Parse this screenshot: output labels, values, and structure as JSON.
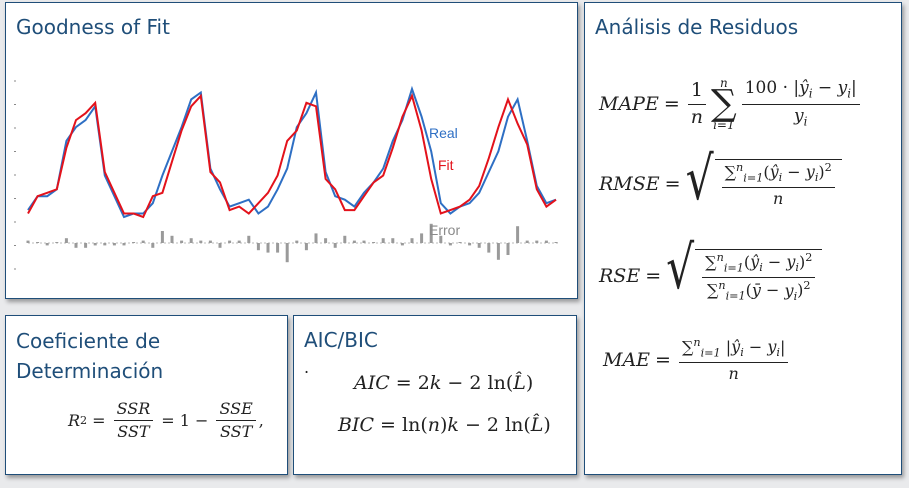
{
  "panels": {
    "goodness": {
      "title": "Goodness of Fit",
      "legend": {
        "real": "Real",
        "fit": "Fit",
        "error": "Error"
      }
    },
    "residuos": {
      "title": "Análisis de Residuos",
      "mape_lhs": "MAPE",
      "rmse_lhs": "RMSE",
      "rse_lhs": "RSE",
      "mae_lhs": "MAE"
    },
    "coef": {
      "title_line1": "Coeficiente de",
      "title_line2": "Determinación"
    },
    "aic": {
      "title": "AIC/BIC",
      "dot": "."
    }
  },
  "colors": {
    "title": "#1f4e79",
    "real": "#2e6fc4",
    "fit": "#e3121b",
    "error": "#9a9a9a",
    "border": "#1f4e79"
  },
  "chart_data": {
    "type": "line",
    "series": [
      {
        "name": "Real",
        "values": [
          0.22,
          0.3,
          0.3,
          0.34,
          0.62,
          0.7,
          0.74,
          0.82,
          0.42,
          0.3,
          0.18,
          0.2,
          0.2,
          0.26,
          0.42,
          0.56,
          0.7,
          0.86,
          0.9,
          0.46,
          0.34,
          0.24,
          0.26,
          0.28,
          0.2,
          0.24,
          0.34,
          0.46,
          0.7,
          0.78,
          0.9,
          0.44,
          0.3,
          0.28,
          0.24,
          0.32,
          0.38,
          0.46,
          0.62,
          0.74,
          0.92,
          0.76,
          0.56,
          0.26,
          0.2,
          0.24,
          0.26,
          0.32,
          0.44,
          0.56,
          0.76,
          0.86,
          0.62,
          0.36,
          0.26,
          0.28
        ]
      },
      {
        "name": "Fit",
        "values": [
          0.2,
          0.3,
          0.32,
          0.34,
          0.58,
          0.74,
          0.78,
          0.84,
          0.44,
          0.32,
          0.2,
          0.2,
          0.18,
          0.3,
          0.32,
          0.5,
          0.68,
          0.82,
          0.88,
          0.44,
          0.38,
          0.22,
          0.24,
          0.2,
          0.26,
          0.32,
          0.42,
          0.62,
          0.68,
          0.84,
          0.82,
          0.4,
          0.34,
          0.22,
          0.22,
          0.3,
          0.38,
          0.42,
          0.58,
          0.76,
          0.88,
          0.68,
          0.4,
          0.2,
          0.22,
          0.24,
          0.28,
          0.36,
          0.52,
          0.7,
          0.86,
          0.72,
          0.6,
          0.34,
          0.24,
          0.28
        ]
      },
      {
        "name": "Error",
        "values": [
          0.01,
          0.0,
          -0.01,
          0.0,
          0.02,
          -0.02,
          -0.02,
          -0.01,
          -0.01,
          -0.01,
          -0.01,
          0.0,
          0.01,
          -0.02,
          0.05,
          0.03,
          0.01,
          0.02,
          0.01,
          0.01,
          -0.02,
          0.01,
          0.01,
          0.03,
          -0.03,
          -0.04,
          -0.04,
          -0.08,
          0.01,
          -0.03,
          0.04,
          0.02,
          -0.02,
          0.03,
          0.01,
          0.01,
          0.0,
          0.02,
          0.02,
          -0.01,
          0.02,
          0.04,
          0.08,
          0.03,
          -0.01,
          0.0,
          -0.01,
          -0.02,
          -0.04,
          -0.07,
          -0.05,
          0.07,
          0.01,
          0.01,
          0.01,
          0.0
        ]
      }
    ]
  }
}
